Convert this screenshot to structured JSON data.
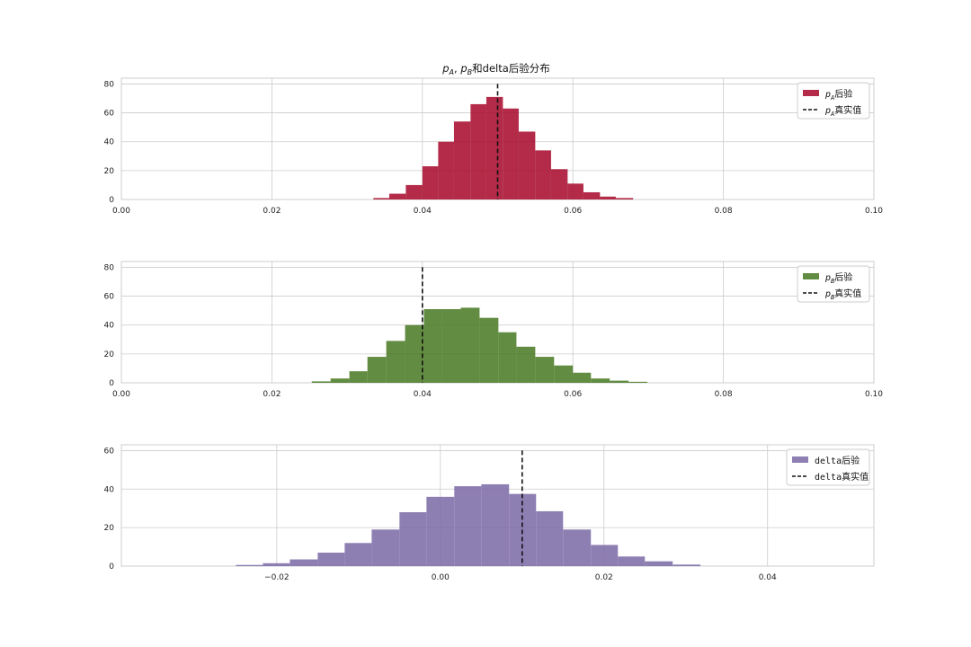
{
  "figure_title": "p_A, p_B和delta后验分布",
  "colors": {
    "grid": "#cccccc",
    "frame": "#cccccc",
    "truth_line": "#111111"
  },
  "chart_data": [
    {
      "type": "bar",
      "name": "pA",
      "title": "p_A, p_B和delta后验分布",
      "color": "#a60628",
      "xlim": [
        0,
        0.1
      ],
      "ylim": [
        0,
        84
      ],
      "xticks": [
        0.0,
        0.02,
        0.04,
        0.06,
        0.08,
        0.1
      ],
      "xtick_labels": [
        "0.00",
        "0.02",
        "0.04",
        "0.06",
        "0.08",
        "0.10"
      ],
      "yticks": [
        0,
        20,
        40,
        60,
        80
      ],
      "ytick_labels": [
        "0",
        "20",
        "40",
        "60",
        "80"
      ],
      "bins": [
        {
          "x0": 0.0335,
          "x1": 0.0356,
          "y": 1
        },
        {
          "x0": 0.0356,
          "x1": 0.0378,
          "y": 4
        },
        {
          "x0": 0.0378,
          "x1": 0.04,
          "y": 10
        },
        {
          "x0": 0.04,
          "x1": 0.0421,
          "y": 23
        },
        {
          "x0": 0.0421,
          "x1": 0.0442,
          "y": 40
        },
        {
          "x0": 0.0442,
          "x1": 0.0464,
          "y": 54
        },
        {
          "x0": 0.0464,
          "x1": 0.0485,
          "y": 66
        },
        {
          "x0": 0.0485,
          "x1": 0.0507,
          "y": 71
        },
        {
          "x0": 0.0507,
          "x1": 0.0528,
          "y": 63
        },
        {
          "x0": 0.0528,
          "x1": 0.055,
          "y": 47
        },
        {
          "x0": 0.055,
          "x1": 0.0571,
          "y": 34
        },
        {
          "x0": 0.0571,
          "x1": 0.0593,
          "y": 21
        },
        {
          "x0": 0.0593,
          "x1": 0.0614,
          "y": 11
        },
        {
          "x0": 0.0614,
          "x1": 0.0636,
          "y": 5
        },
        {
          "x0": 0.0636,
          "x1": 0.0657,
          "y": 2
        },
        {
          "x0": 0.0657,
          "x1": 0.068,
          "y": 1
        }
      ],
      "true_value": 0.05,
      "vline_ymax": 80,
      "legend": {
        "hist": "p_A后验",
        "line": "p_A真实值",
        "position": "upper right"
      }
    },
    {
      "type": "bar",
      "name": "pB",
      "color": "#467821",
      "xlim": [
        0,
        0.1
      ],
      "ylim": [
        0,
        84
      ],
      "xticks": [
        0.0,
        0.02,
        0.04,
        0.06,
        0.08,
        0.1
      ],
      "xtick_labels": [
        "0.00",
        "0.02",
        "0.04",
        "0.06",
        "0.08",
        "0.10"
      ],
      "yticks": [
        0,
        20,
        40,
        60,
        80
      ],
      "ytick_labels": [
        "0",
        "20",
        "40",
        "60",
        "80"
      ],
      "bins": [
        {
          "x0": 0.0253,
          "x1": 0.0278,
          "y": 1
        },
        {
          "x0": 0.0278,
          "x1": 0.0303,
          "y": 3
        },
        {
          "x0": 0.0303,
          "x1": 0.0327,
          "y": 8
        },
        {
          "x0": 0.0327,
          "x1": 0.0352,
          "y": 18
        },
        {
          "x0": 0.0352,
          "x1": 0.0377,
          "y": 29
        },
        {
          "x0": 0.0377,
          "x1": 0.0402,
          "y": 40
        },
        {
          "x0": 0.0402,
          "x1": 0.0426,
          "y": 51
        },
        {
          "x0": 0.0426,
          "x1": 0.0451,
          "y": 51
        },
        {
          "x0": 0.0451,
          "x1": 0.0476,
          "y": 52
        },
        {
          "x0": 0.0476,
          "x1": 0.0501,
          "y": 45
        },
        {
          "x0": 0.0501,
          "x1": 0.0525,
          "y": 35
        },
        {
          "x0": 0.0525,
          "x1": 0.055,
          "y": 25
        },
        {
          "x0": 0.055,
          "x1": 0.0575,
          "y": 18
        },
        {
          "x0": 0.0575,
          "x1": 0.06,
          "y": 12
        },
        {
          "x0": 0.06,
          "x1": 0.0624,
          "y": 7
        },
        {
          "x0": 0.0624,
          "x1": 0.0649,
          "y": 3
        },
        {
          "x0": 0.0649,
          "x1": 0.0674,
          "y": 1.5
        },
        {
          "x0": 0.0674,
          "x1": 0.0699,
          "y": 0.7
        }
      ],
      "true_value": 0.04,
      "vline_ymax": 80,
      "legend": {
        "hist": "p_B后验",
        "line": "p_B真实值",
        "position": "upper right"
      }
    },
    {
      "type": "bar",
      "name": "delta",
      "color": "#7a68a6",
      "xlim": [
        -0.039,
        0.053
      ],
      "ylim": [
        0,
        63
      ],
      "xticks": [
        -0.02,
        0.0,
        0.02,
        0.04
      ],
      "xtick_labels": [
        "−0.02",
        "0.00",
        "0.02",
        "0.04"
      ],
      "yticks": [
        0,
        20,
        40,
        60
      ],
      "ytick_labels": [
        "0",
        "20",
        "40",
        "60"
      ],
      "bins": [
        {
          "x0": -0.025,
          "x1": -0.0217,
          "y": 0.6
        },
        {
          "x0": -0.0217,
          "x1": -0.0184,
          "y": 1.5
        },
        {
          "x0": -0.0184,
          "x1": -0.015,
          "y": 3.5
        },
        {
          "x0": -0.015,
          "x1": -0.0117,
          "y": 7
        },
        {
          "x0": -0.0117,
          "x1": -0.0084,
          "y": 12
        },
        {
          "x0": -0.0084,
          "x1": -0.005,
          "y": 19
        },
        {
          "x0": -0.005,
          "x1": -0.0017,
          "y": 28
        },
        {
          "x0": -0.0017,
          "x1": 0.0017,
          "y": 36
        },
        {
          "x0": 0.0017,
          "x1": 0.005,
          "y": 41.5
        },
        {
          "x0": 0.005,
          "x1": 0.0084,
          "y": 42.5
        },
        {
          "x0": 0.0084,
          "x1": 0.0117,
          "y": 37.5
        },
        {
          "x0": 0.0117,
          "x1": 0.015,
          "y": 28.5
        },
        {
          "x0": 0.015,
          "x1": 0.0184,
          "y": 19
        },
        {
          "x0": 0.0184,
          "x1": 0.0217,
          "y": 11
        },
        {
          "x0": 0.0217,
          "x1": 0.025,
          "y": 5
        },
        {
          "x0": 0.025,
          "x1": 0.0284,
          "y": 2.5
        },
        {
          "x0": 0.0284,
          "x1": 0.0318,
          "y": 0.8
        }
      ],
      "true_value": 0.01,
      "vline_ymax": 60,
      "legend": {
        "hist": "delta后验",
        "line": "delta真实值",
        "position": "upper right"
      }
    }
  ]
}
